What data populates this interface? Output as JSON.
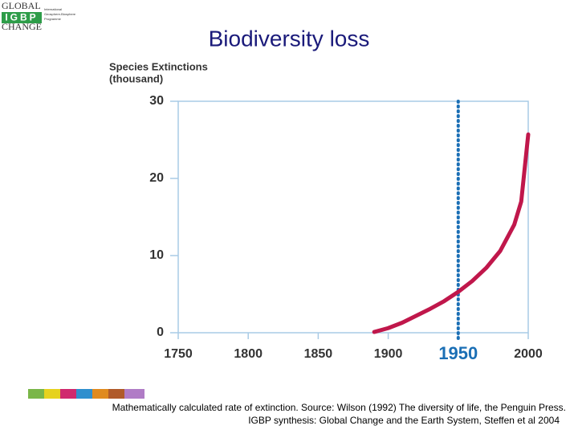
{
  "logo": {
    "line1": "GLOBAL",
    "line2": "IGBP",
    "line3": "CHANGE",
    "sub1": "International",
    "sub2": "Geosphere-Biosphere",
    "sub3": "Programme"
  },
  "chart_data": {
    "type": "line",
    "title": "Biodiversity loss",
    "ylabel": [
      "Species Extinctions",
      "(thousand)"
    ],
    "x": [
      1890,
      1900,
      1910,
      1920,
      1930,
      1940,
      1950,
      1960,
      1970,
      1980,
      1990,
      1995,
      2000
    ],
    "values": [
      0.1,
      0.6,
      1.3,
      2.2,
      3.1,
      4.1,
      5.3,
      6.7,
      8.4,
      10.6,
      14,
      17,
      25.7
    ],
    "color": "#c0174b",
    "xlim": [
      1750,
      2000
    ],
    "xticks": [
      1750,
      1800,
      1850,
      1900,
      1950,
      2000
    ],
    "ylim": [
      0,
      30
    ],
    "yticks": [
      0,
      10,
      20,
      30
    ],
    "highlight_x": 1950,
    "highlight_color": "#1b6fb5"
  },
  "caption": [
    "Mathematically calculated rate of extinction. Source: Wilson (1992) The diversity of life, the Penguin Press.",
    "IGBP synthesis: Global Change and the Earth System, Steffen et al 2004"
  ]
}
